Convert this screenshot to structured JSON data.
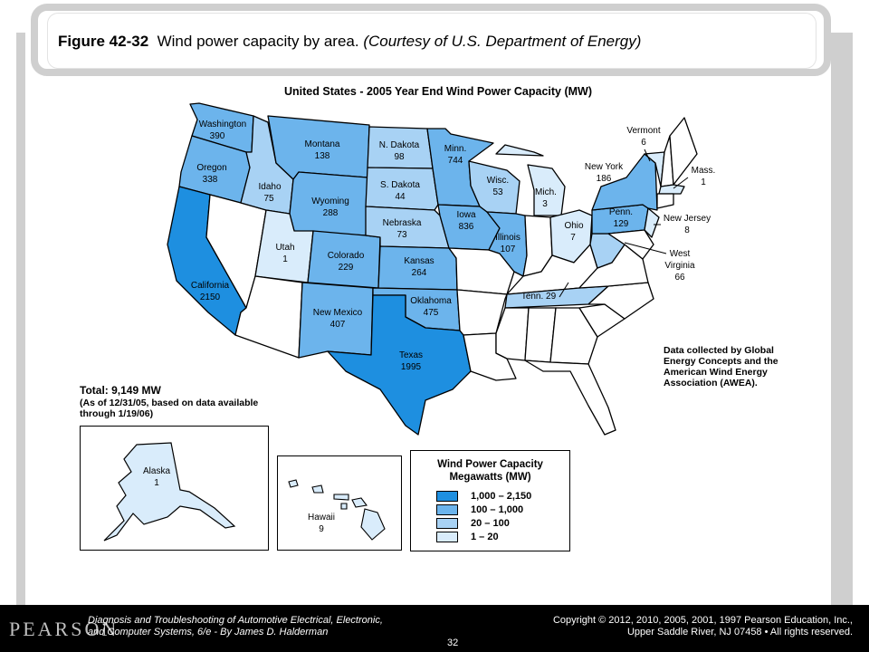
{
  "header": {
    "figure_label": "Figure 42-32",
    "caption": "Wind power capacity by area.",
    "credit": "(Courtesy of U.S. Department of Energy)"
  },
  "map": {
    "title": "United States - 2005 Year End Wind Power Capacity (MW)",
    "states": [
      {
        "name": "Washington",
        "value": "390",
        "tier": 2
      },
      {
        "name": "Oregon",
        "value": "338",
        "tier": 2
      },
      {
        "name": "California",
        "value": "2150",
        "tier": 1
      },
      {
        "name": "Idaho",
        "value": "75",
        "tier": 3
      },
      {
        "name": "Montana",
        "value": "138",
        "tier": 2
      },
      {
        "name": "Wyoming",
        "value": "288",
        "tier": 2
      },
      {
        "name": "Utah",
        "value": "1",
        "tier": 4
      },
      {
        "name": "Colorado",
        "value": "229",
        "tier": 2
      },
      {
        "name": "New Mexico",
        "value": "407",
        "tier": 2
      },
      {
        "name": "N. Dakota",
        "value": "98",
        "tier": 3
      },
      {
        "name": "S. Dakota",
        "value": "44",
        "tier": 3
      },
      {
        "name": "Nebraska",
        "value": "73",
        "tier": 3
      },
      {
        "name": "Kansas",
        "value": "264",
        "tier": 2
      },
      {
        "name": "Oklahoma",
        "value": "475",
        "tier": 2
      },
      {
        "name": "Texas",
        "value": "1995",
        "tier": 1
      },
      {
        "name": "Minn.",
        "value": "744",
        "tier": 2
      },
      {
        "name": "Iowa",
        "value": "836",
        "tier": 2
      },
      {
        "name": "Wisc.",
        "value": "53",
        "tier": 3
      },
      {
        "name": "Illinois",
        "value": "107",
        "tier": 2
      },
      {
        "name": "Mich.",
        "value": "3",
        "tier": 4
      },
      {
        "name": "Ohio",
        "value": "7",
        "tier": 4
      },
      {
        "name": "Tenn.",
        "value": "29",
        "tier": 3
      },
      {
        "name": "Penn.",
        "value": "129",
        "tier": 2
      },
      {
        "name": "West Virginia",
        "value": "66",
        "tier": 3
      },
      {
        "name": "New York",
        "value": "186",
        "tier": 2
      },
      {
        "name": "Vermont",
        "value": "6",
        "tier": 4
      },
      {
        "name": "Mass.",
        "value": "1",
        "tier": 4
      },
      {
        "name": "New Jersey",
        "value": "8",
        "tier": 4
      },
      {
        "name": "Alaska",
        "value": "1",
        "tier": 4
      },
      {
        "name": "Hawaii",
        "value": "9",
        "tier": 4
      }
    ],
    "labels": {
      "washington": "Washington",
      "washington_v": "390",
      "oregon": "Oregon",
      "oregon_v": "338",
      "california": "California",
      "california_v": "2150",
      "idaho": "Idaho",
      "idaho_v": "75",
      "montana": "Montana",
      "montana_v": "138",
      "wyoming": "Wyoming",
      "wyoming_v": "288",
      "utah": "Utah",
      "utah_v": "1",
      "colorado": "Colorado",
      "colorado_v": "229",
      "newmexico": "New Mexico",
      "newmexico_v": "407",
      "ndakota": "N. Dakota",
      "ndakota_v": "98",
      "sdakota": "S. Dakota",
      "sdakota_v": "44",
      "nebraska": "Nebraska",
      "nebraska_v": "73",
      "kansas": "Kansas",
      "kansas_v": "264",
      "oklahoma": "Oklahoma",
      "oklahoma_v": "475",
      "texas": "Texas",
      "texas_v": "1995",
      "minn": "Minn.",
      "minn_v": "744",
      "iowa": "Iowa",
      "iowa_v": "836",
      "wisc": "Wisc.",
      "wisc_v": "53",
      "illinois": "Illinois",
      "illinois_v": "107",
      "mich": "Mich.",
      "mich_v": "3",
      "ohio": "Ohio",
      "ohio_v": "7",
      "tenn": "Tenn. 29",
      "penn": "Penn.",
      "penn_v": "129",
      "wv1": "West",
      "wv2": "Virginia",
      "wv_v": "66",
      "newyork": "New York",
      "newyork_v": "186",
      "vermont": "Vermont",
      "vermont_v": "6",
      "mass": "Mass.",
      "mass_v": "1",
      "newjersey": "New Jersey",
      "newjersey_v": "8",
      "alaska": "Alaska",
      "alaska_v": "1",
      "hawaii": "Hawaii",
      "hawaii_v": "9"
    },
    "data_note": [
      "Data collected by Global",
      "Energy Concepts and the",
      "American Wind Energy",
      "Association (AWEA)."
    ],
    "total_label": "Total: 9,149 MW",
    "total_note": [
      "(As of 12/31/05, based on data available",
      "through 1/19/06)"
    ]
  },
  "legend": {
    "title_line1": "Wind Power Capacity",
    "title_line2": "Megawatts (MW)",
    "items": [
      {
        "range": "1,000 – 2,150",
        "color": "#1e8fe0"
      },
      {
        "range": "100 – 1,000",
        "color": "#6cb4ec"
      },
      {
        "range": "20 – 100",
        "color": "#a8d2f4"
      },
      {
        "range": "1 – 20",
        "color": "#d9ecfb"
      }
    ]
  },
  "colors": {
    "tier1": "#1e8fe0",
    "tier2": "#6cb4ec",
    "tier3": "#a8d2f4",
    "tier4": "#d9ecfb",
    "none": "#ffffff"
  },
  "footer": {
    "publisher": "PEARSON",
    "book_line1": "Diagnosis and Troubleshooting of Automotive Electrical, Electronic,",
    "book_line2": "and Computer Systems, 6/e - By James D. Halderman",
    "copyright_line1": "Copyright © 2012, 2010, 2005, 2001, 1997 Pearson Education, Inc.,",
    "copyright_line2": "Upper Saddle River, NJ 07458 • All rights reserved.",
    "page_number": "32"
  }
}
